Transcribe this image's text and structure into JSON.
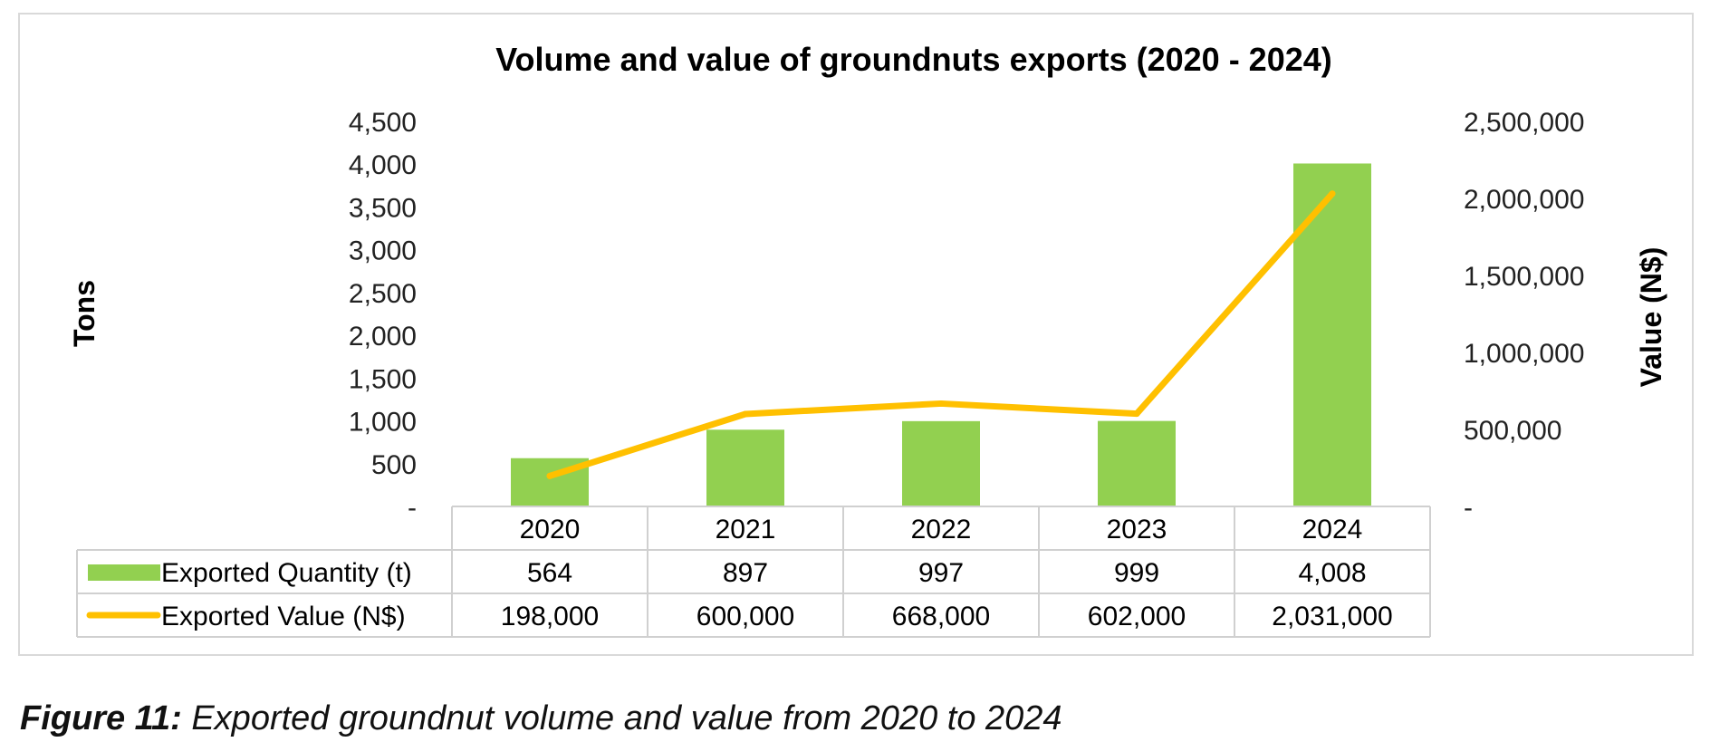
{
  "chart_data": {
    "type": "bar",
    "title": "Volume and value of groundnuts exports (2020 - 2024)",
    "categories": [
      "2020",
      "2021",
      "2022",
      "2023",
      "2024"
    ],
    "series": [
      {
        "name": "Exported Quantity (t)",
        "kind": "bar",
        "axis": "left",
        "color": "#92d050",
        "values": [
          564,
          897,
          997,
          999,
          4008
        ],
        "labels": [
          "564",
          "897",
          "997",
          "999",
          "4,008"
        ]
      },
      {
        "name": "Exported Value (N$)",
        "kind": "line",
        "axis": "right",
        "color": "#ffc000",
        "values": [
          198000,
          600000,
          668000,
          602000,
          2031000
        ],
        "labels": [
          "198,000",
          "600,000",
          "668,000",
          "602,000",
          "2,031,000"
        ]
      }
    ],
    "y_left": {
      "label": "Tons",
      "range": [
        0,
        4500
      ],
      "ticks": [
        {
          "v": 0,
          "t": "-"
        },
        {
          "v": 500,
          "t": "500"
        },
        {
          "v": 1000,
          "t": "1,000"
        },
        {
          "v": 1500,
          "t": "1,500"
        },
        {
          "v": 2000,
          "t": "2,000"
        },
        {
          "v": 2500,
          "t": "2,500"
        },
        {
          "v": 3000,
          "t": "3,000"
        },
        {
          "v": 3500,
          "t": "3,500"
        },
        {
          "v": 4000,
          "t": "4,000"
        },
        {
          "v": 4500,
          "t": "4,500"
        }
      ]
    },
    "y_right": {
      "label": "Value (N$)",
      "range": [
        0,
        2500000
      ],
      "ticks": [
        {
          "v": 0,
          "t": "-"
        },
        {
          "v": 500000,
          "t": "500,000"
        },
        {
          "v": 1000000,
          "t": "1,000,000"
        },
        {
          "v": 1500000,
          "t": "1,500,000"
        },
        {
          "v": 2000000,
          "t": "2,000,000"
        },
        {
          "v": 2500000,
          "t": "2,500,000"
        }
      ]
    },
    "grid": false,
    "data_table": true
  },
  "caption": {
    "lead": "Figure 11:",
    "text": " Exported groundnut volume and value from 2020 to 2024"
  }
}
